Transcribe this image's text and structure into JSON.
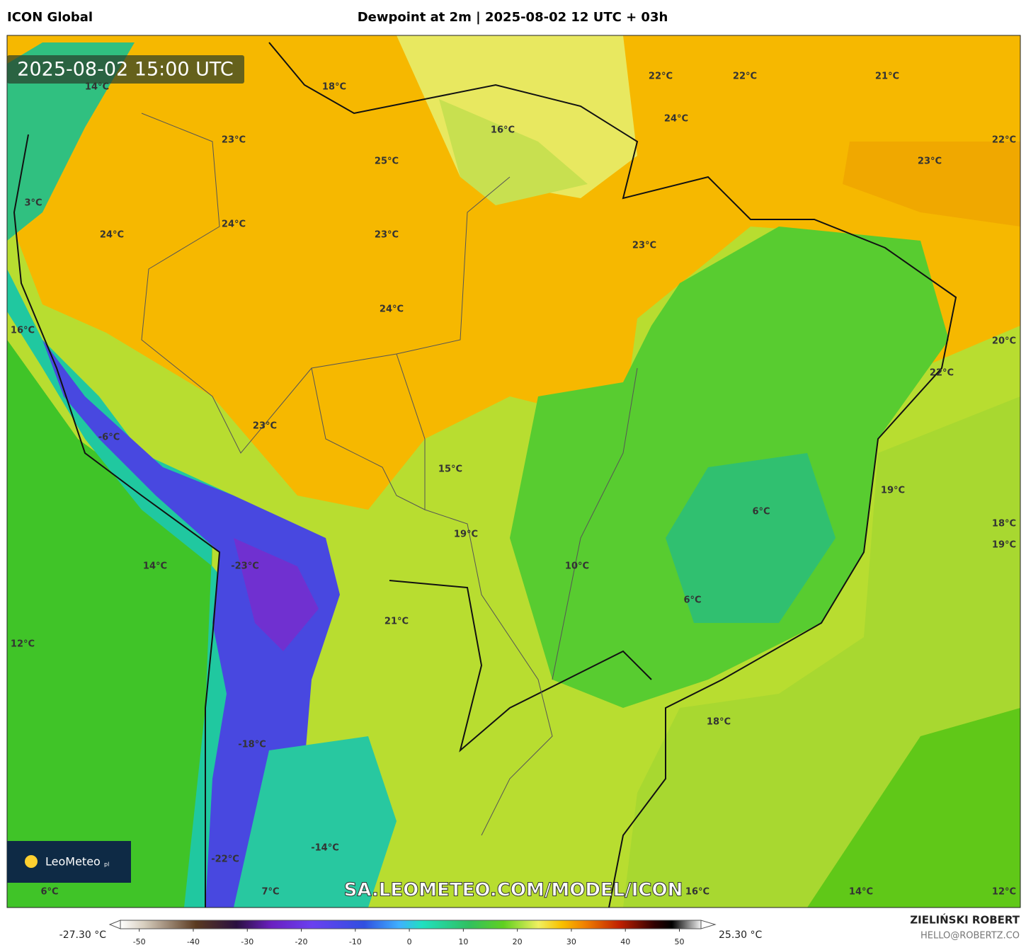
{
  "header": {
    "model": "ICON Global",
    "title": "Dewpoint at 2m | 2025-08-02 12 UTC + 03h"
  },
  "timestamp": "2025-08-02 15:00 UTC",
  "map_labels": [
    "14°C",
    "18°C",
    "22°C",
    "22°C",
    "21°C",
    "16°C",
    "24°C",
    "23°C",
    "25°C",
    "22°C",
    "23°C",
    "3°C",
    "24°C",
    "24°C",
    "23°C",
    "23°C",
    "24°C",
    "16°C",
    "20°C",
    "22°C",
    "-6°C",
    "23°C",
    "15°C",
    "19°C",
    "6°C",
    "18°C",
    "19°C",
    "19°C",
    "14°C",
    "-23°C",
    "10°C",
    "6°C",
    "21°C",
    "12°C",
    "18°C",
    "-18°C",
    "-14°C",
    "-22°C",
    "6°C",
    "7°C",
    "16°C",
    "14°C",
    "12°C"
  ],
  "watermark": "SA.LEOMETEO.COM/MODEL/ICON",
  "logo": {
    "name": "LeoMeteo",
    "suffix": "pl"
  },
  "colorbar": {
    "min_label": "-27.30 °C",
    "max_label": "25.30 °C",
    "lim": [
      -53.5,
      54
    ],
    "ticks": [
      -50,
      -40,
      -30,
      -20,
      -10,
      0,
      10,
      20,
      30,
      40,
      50
    ]
  },
  "credits": {
    "author": "ZIELIŃSKI ROBERT",
    "email": "HELLO@ROBERTZ.CO"
  }
}
